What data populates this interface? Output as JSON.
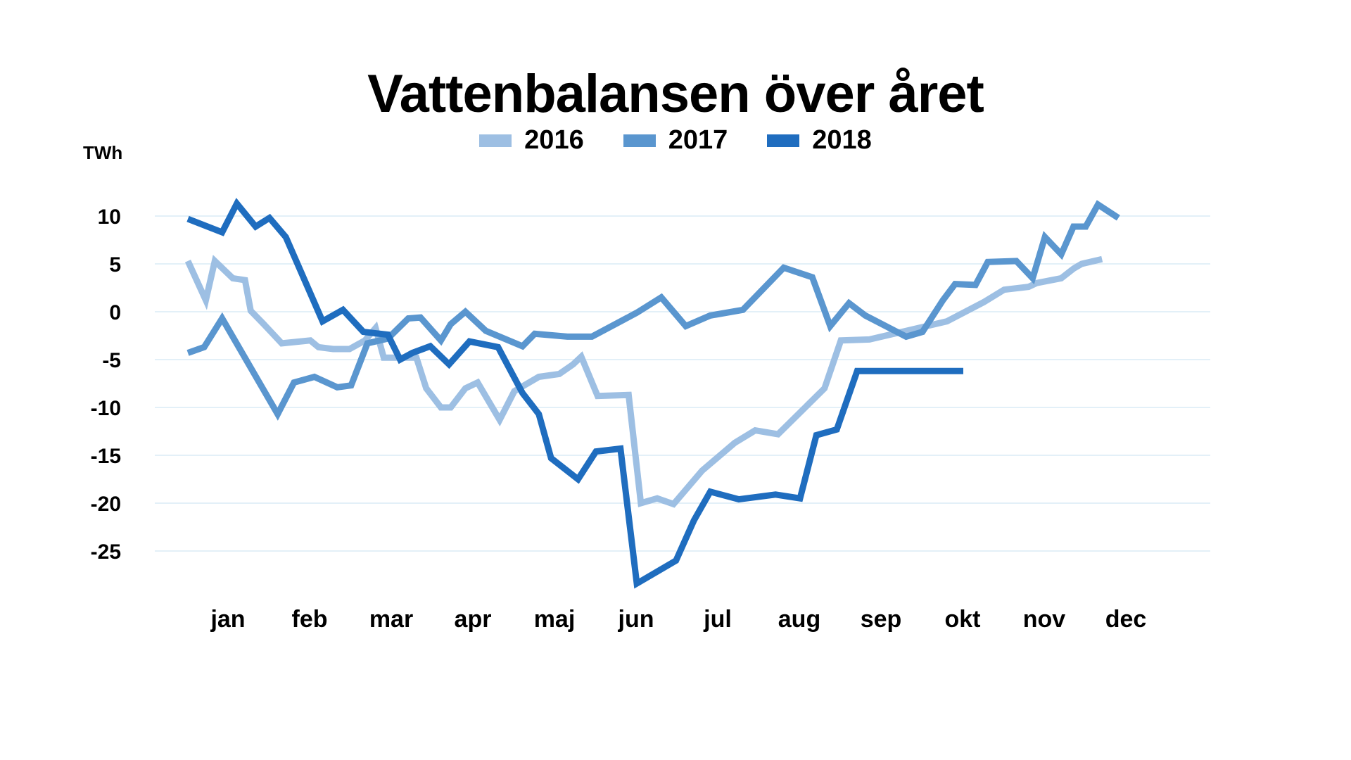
{
  "chart_data": {
    "type": "line",
    "title": "Vattenbalansen över året",
    "ylabel": "TWh",
    "ylim": [
      -28.5,
      12
    ],
    "grid": true,
    "legend_position": "top-center",
    "yticks": [
      10,
      5,
      0,
      -5,
      -10,
      -15,
      -20,
      -25
    ],
    "ytick_labels": [
      "10",
      "5",
      "0",
      "-5",
      "-10",
      "-15",
      "-20",
      "-25"
    ],
    "categories": [
      "jan",
      "feb",
      "mar",
      "apr",
      "maj",
      "jun",
      "jul",
      "aug",
      "sep",
      "okt",
      "nov",
      "dec"
    ],
    "series": [
      {
        "name": "2016",
        "color": "#9dbfe3",
        "x": [
          0.0,
          0.22,
          0.33,
          0.55,
          0.7,
          0.77,
          0.93,
          1.15,
          1.5,
          1.6,
          1.78,
          1.98,
          2.17,
          2.3,
          2.4,
          2.63,
          2.8,
          2.92,
          3.1,
          3.22,
          3.4,
          3.55,
          3.82,
          4.0,
          4.3,
          4.55,
          4.72,
          4.82,
          5.02,
          5.4,
          5.55,
          5.75,
          5.95,
          6.3,
          6.7,
          6.95,
          7.23,
          7.8,
          8.0,
          8.35,
          9.3,
          9.75,
          10.0,
          10.3,
          10.4,
          10.7,
          10.85,
          10.95,
          11.2
        ],
        "values": [
          5.3,
          1.2,
          5.3,
          3.5,
          3.3,
          0.1,
          -1.3,
          -3.3,
          -3.0,
          -3.7,
          -3.9,
          -3.9,
          -3.0,
          -1.7,
          -4.8,
          -4.8,
          -4.8,
          -8.0,
          -10.0,
          -10.0,
          -8.0,
          -7.4,
          -11.3,
          -8.3,
          -6.8,
          -6.5,
          -5.5,
          -4.7,
          -8.8,
          -8.7,
          -20.0,
          -19.5,
          -20.1,
          -16.6,
          -13.7,
          -12.4,
          -12.8,
          -8.0,
          -3.0,
          -2.9,
          -1.0,
          1.0,
          2.3,
          2.6,
          3.0,
          3.5,
          4.5,
          5.0,
          5.5
        ],
        "note_skip": true
      },
      {
        "name": "2017",
        "color": "#5a96cf",
        "x": [
          0.0,
          0.2,
          0.42,
          1.1,
          1.3,
          1.55,
          1.83,
          2.0,
          2.2,
          2.45,
          2.7,
          2.85,
          3.1,
          3.22,
          3.4,
          3.65,
          4.1,
          4.25,
          4.65,
          4.95,
          5.5,
          5.8,
          6.1,
          6.4,
          6.8,
          7.3,
          7.65,
          7.87,
          8.1,
          8.3,
          8.8,
          9.0,
          9.25,
          9.4,
          9.65,
          9.8,
          10.15,
          10.35,
          10.5,
          10.7,
          10.85,
          11.0,
          11.15,
          11.4
        ],
        "values": [
          -4.3,
          -3.7,
          -0.7,
          -10.7,
          -7.4,
          -6.8,
          -7.9,
          -7.7,
          -3.3,
          -2.8,
          -0.7,
          -0.6,
          -3.0,
          -1.3,
          0.0,
          -2.0,
          -3.6,
          -2.3,
          -2.6,
          -2.6,
          -0.1,
          1.5,
          -1.5,
          -0.4,
          0.2,
          4.6,
          3.6,
          -1.5,
          0.9,
          -0.4,
          -2.6,
          -2.1,
          1.2,
          2.9,
          2.8,
          5.2,
          5.3,
          3.5,
          7.8,
          6.0,
          8.9,
          8.9,
          11.2,
          9.8
        ]
      },
      {
        "name": "2018",
        "color": "#1f6dbf",
        "x": [
          0.0,
          0.42,
          0.6,
          0.83,
          1.0,
          1.2,
          1.65,
          1.9,
          2.15,
          2.45,
          2.6,
          2.75,
          2.97,
          3.2,
          3.45,
          3.8,
          4.1,
          4.3,
          4.45,
          4.78,
          5.0,
          5.3,
          5.5,
          5.98,
          6.2,
          6.4,
          6.75,
          7.2,
          7.5,
          7.7,
          7.95,
          8.2,
          8.35,
          8.5,
          8.65,
          8.95,
          9.5
        ],
        "values": [
          9.7,
          8.3,
          11.3,
          8.9,
          9.8,
          7.8,
          -1.0,
          0.2,
          -2.1,
          -2.4,
          -5.0,
          -4.3,
          -3.6,
          -5.5,
          -3.1,
          -3.7,
          -8.5,
          -10.7,
          -15.3,
          -17.5,
          -14.6,
          -14.3,
          -28.4,
          -26.0,
          -21.8,
          -18.8,
          -19.6,
          -19.1,
          -19.5,
          -12.9,
          -12.3,
          -6.2,
          -6.2,
          -6.2,
          -6.2,
          -6.2,
          -6.2
        ]
      }
    ]
  }
}
